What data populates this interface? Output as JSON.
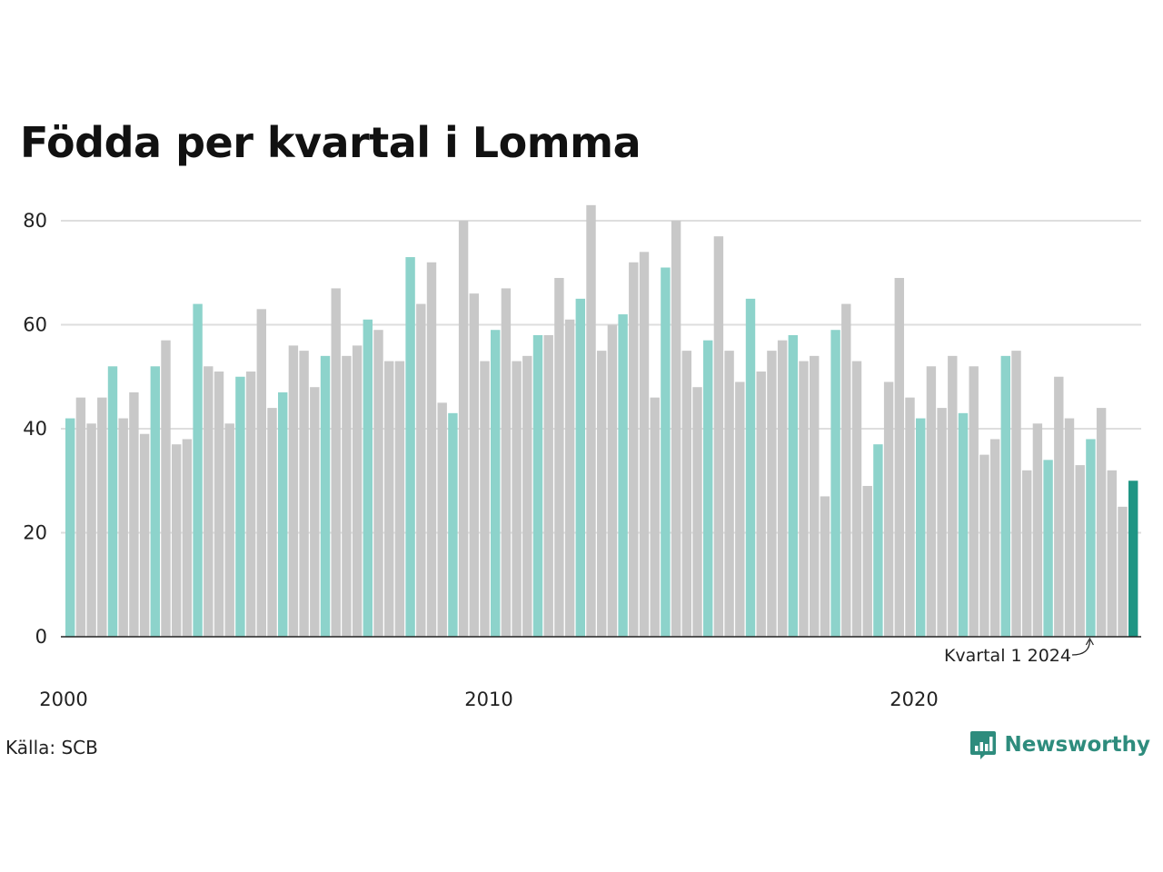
{
  "chart_data": {
    "type": "bar",
    "title": "Födda per kvartal i Lomma",
    "xlabel": "",
    "ylabel": "",
    "ylim": [
      0,
      85
    ],
    "yticks": [
      0,
      20,
      40,
      60,
      80
    ],
    "x_tick_labels": [
      {
        "label": "2000",
        "year": 2000
      },
      {
        "label": "2010",
        "year": 2010
      },
      {
        "label": "2020",
        "year": 2020
      }
    ],
    "start_year": 2000,
    "grid": true,
    "legend": "none",
    "values": [
      42,
      46,
      41,
      46,
      52,
      42,
      47,
      39,
      52,
      57,
      37,
      38,
      64,
      52,
      51,
      41,
      50,
      51,
      63,
      44,
      47,
      56,
      55,
      48,
      54,
      67,
      54,
      56,
      61,
      59,
      53,
      53,
      73,
      64,
      72,
      45,
      43,
      80,
      66,
      53,
      59,
      67,
      53,
      54,
      58,
      58,
      69,
      61,
      65,
      83,
      55,
      60,
      62,
      72,
      74,
      46,
      71,
      80,
      55,
      48,
      57,
      77,
      55,
      49,
      65,
      51,
      55,
      57,
      58,
      53,
      54,
      27,
      59,
      64,
      53,
      29,
      37,
      49,
      69,
      46,
      42,
      52,
      44,
      54,
      43,
      52,
      35,
      38,
      54,
      55,
      32,
      41,
      34,
      50,
      42,
      33,
      38,
      44,
      32,
      25,
      30
    ],
    "colors": {
      "q1": "#8dd3cb",
      "other": "#c8c8c8",
      "latest": "#1f9584",
      "grid": "#dedede",
      "axis": "#222222"
    },
    "annotation": {
      "text": "Kvartal 1 2024",
      "index": 96
    }
  },
  "source": "Källa: SCB",
  "brand": {
    "name": "Newsworthy",
    "icon": "newsworthy-logo-icon",
    "color": "#2e8c7d"
  }
}
